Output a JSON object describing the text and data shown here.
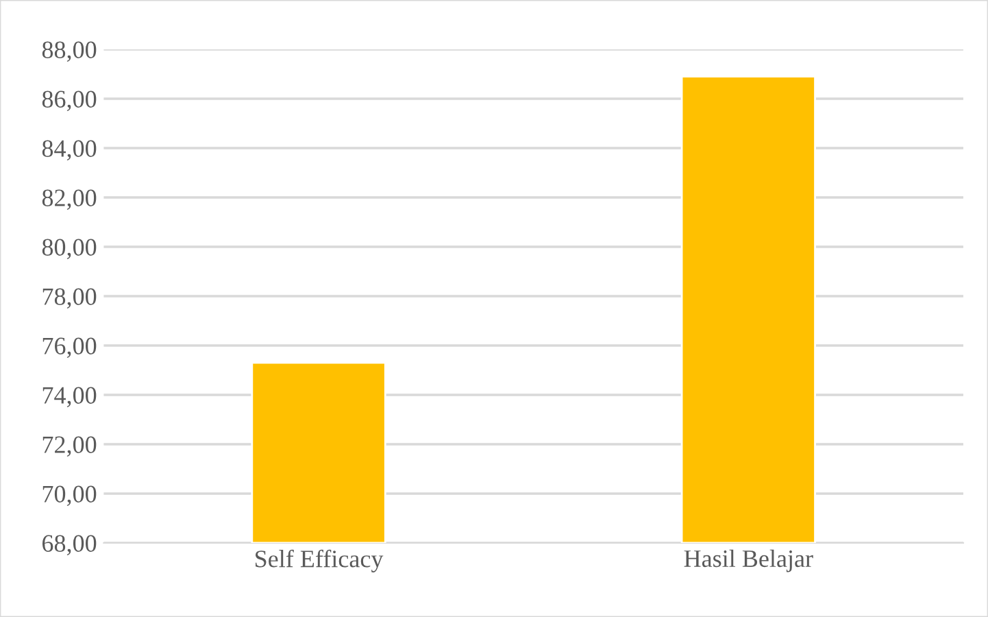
{
  "chart_data": {
    "type": "bar",
    "categories": [
      "Self Efficacy",
      "Hasil Belajar"
    ],
    "values": [
      75.3,
      86.9
    ],
    "color": "#ffc000",
    "ylim": [
      68,
      88
    ],
    "yticks": [
      {
        "value": 68,
        "label": "68,00"
      },
      {
        "value": 70,
        "label": "70,00"
      },
      {
        "value": 72,
        "label": "72,00"
      },
      {
        "value": 74,
        "label": "74,00"
      },
      {
        "value": 76,
        "label": "76,00"
      },
      {
        "value": 78,
        "label": "78,00"
      },
      {
        "value": 80,
        "label": "80,00"
      },
      {
        "value": 82,
        "label": "82,00"
      },
      {
        "value": 84,
        "label": "84,00"
      },
      {
        "value": 86,
        "label": "86,00"
      },
      {
        "value": 88,
        "label": "88,00"
      }
    ],
    "grid": "y"
  }
}
